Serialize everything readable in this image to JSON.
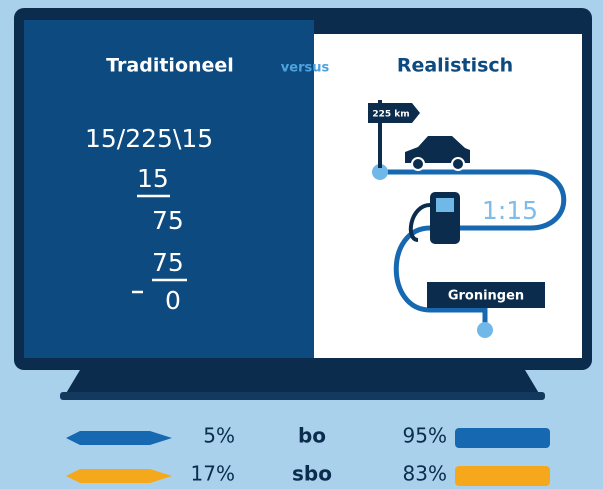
{
  "header": {
    "left_title": "Traditioneel",
    "middle": "versus",
    "right_title": "Realistisch"
  },
  "traditional": {
    "lines": [
      "15/225\\15",
      "15",
      "75",
      "75",
      "0"
    ]
  },
  "realistic": {
    "sign": "225 km",
    "ratio": "1:15",
    "destination": "Groningen"
  },
  "legend": {
    "rows": [
      {
        "left": "5%",
        "label": "bo",
        "right": "95%"
      },
      {
        "left": "17%",
        "label": "sbo",
        "right": "83%"
      }
    ]
  }
}
